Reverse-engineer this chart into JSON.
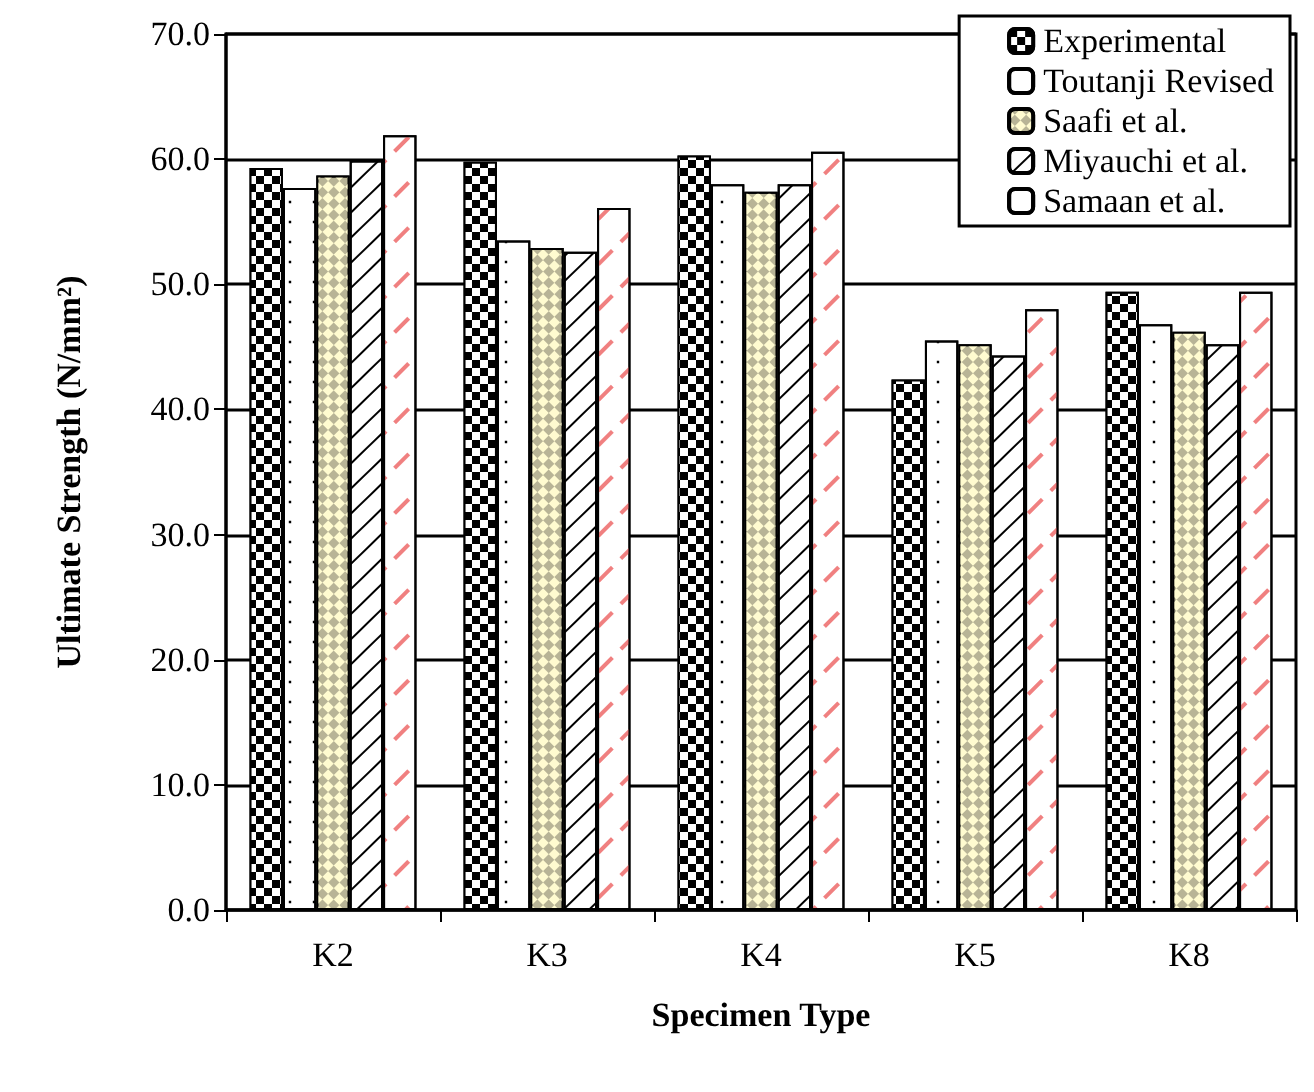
{
  "chart_data": {
    "type": "bar",
    "xlabel": "Specimen Type",
    "ylabel": "Ultimate Strength (N/mm²)",
    "categories": [
      "K2",
      "K3",
      "K4",
      "K5",
      "K8"
    ],
    "series": [
      {
        "name": "Experimental",
        "color": "#000000",
        "values": [
          59.3,
          59.8,
          60.3,
          42.4,
          49.4
        ]
      },
      {
        "name": "Toutanji Revised",
        "color": "#ffffff",
        "values": [
          57.7,
          53.5,
          58.0,
          45.5,
          46.8
        ]
      },
      {
        "name": "Saafi et al.",
        "color": "#b8b496",
        "values": [
          58.7,
          52.9,
          57.4,
          45.2,
          46.2
        ]
      },
      {
        "name": "Miyauchi et al.",
        "color": "#ffffff",
        "values": [
          59.9,
          52.6,
          58.0,
          44.3,
          45.2
        ]
      },
      {
        "name": "Samaan et al.",
        "color": "#ffffff",
        "values": [
          61.9,
          56.1,
          60.6,
          48.0,
          49.4
        ]
      }
    ],
    "ylim": [
      0,
      70
    ],
    "yticks": [
      {
        "value": 0,
        "label": "0.0"
      },
      {
        "value": 10,
        "label": "10.0"
      },
      {
        "value": 20,
        "label": "20.0"
      },
      {
        "value": 30,
        "label": "30.0"
      },
      {
        "value": 40,
        "label": "40.0"
      },
      {
        "value": 50,
        "label": "50.0"
      },
      {
        "value": 60,
        "label": "60.0"
      },
      {
        "value": 70,
        "label": "70.0"
      }
    ],
    "grid": "y",
    "legend": "top right"
  }
}
